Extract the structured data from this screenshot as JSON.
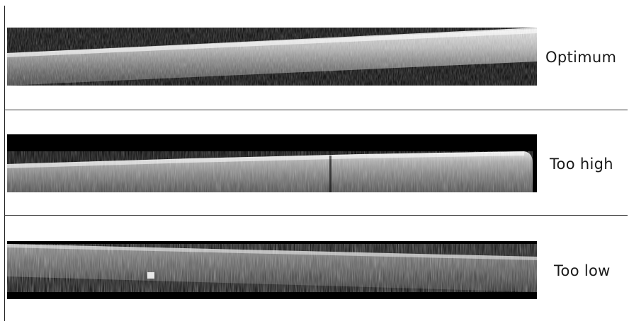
{
  "panels": [
    {
      "label": "Optimum"
    },
    {
      "label": "Too high"
    },
    {
      "label": "Too low"
    }
  ],
  "colors": {
    "background": "#ffffff",
    "panel_background": "#000000",
    "signal": "#ffffff",
    "label_text": "#1a1a1a",
    "divider": "#333333"
  }
}
